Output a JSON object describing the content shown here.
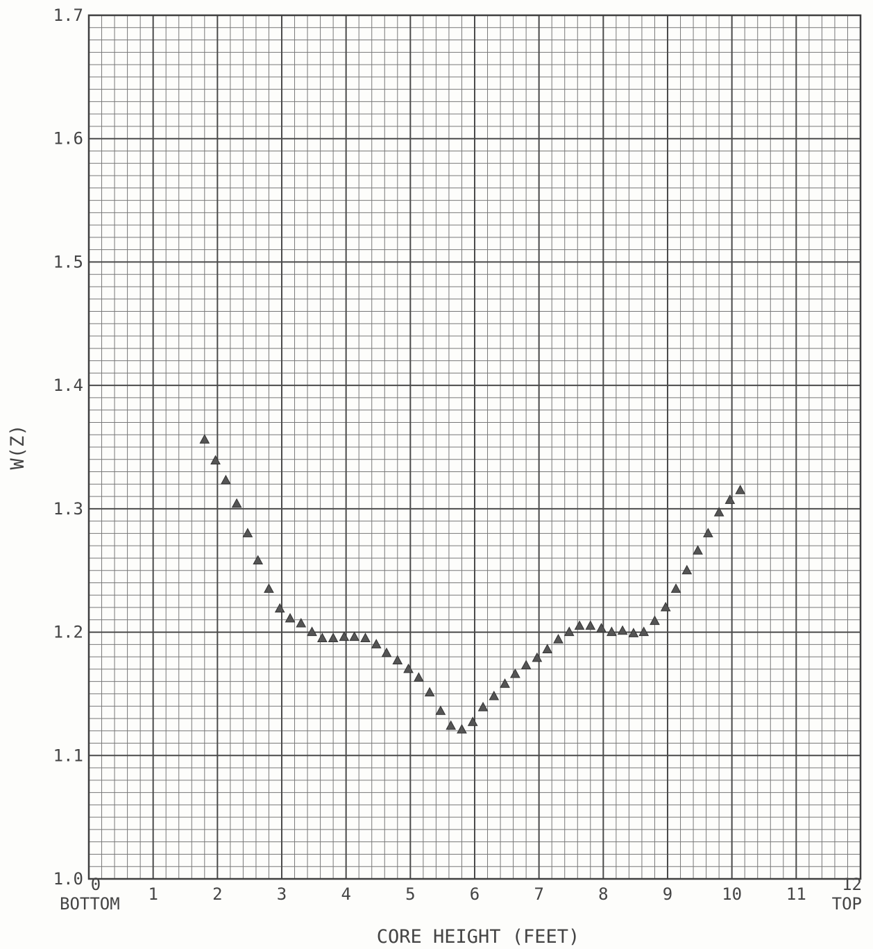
{
  "chart_data": {
    "type": "scatter",
    "xlabel": "CORE HEIGHT (FEET)",
    "ylabel": "W(Z)",
    "x_end_labels": {
      "left": "BOTTOM",
      "right": "TOP"
    },
    "xlim": [
      0,
      12
    ],
    "ylim": [
      1.0,
      1.7
    ],
    "x_ticks": [
      "0",
      "1",
      "2",
      "3",
      "4",
      "5",
      "6",
      "7",
      "8",
      "9",
      "10",
      "11",
      "12"
    ],
    "y_ticks": [
      "1.0",
      "1.1",
      "1.2",
      "1.3",
      "1.4",
      "1.5",
      "1.6",
      "1.7"
    ],
    "grid": true,
    "marker": "triangle",
    "colors": {
      "grid_major": "#4a4a4a",
      "grid_minor": "#777777",
      "marker": "#555555"
    },
    "series": [
      {
        "points": [
          [
            1.8,
            1.356
          ],
          [
            1.97,
            1.339
          ],
          [
            2.13,
            1.323
          ],
          [
            2.3,
            1.304
          ],
          [
            2.47,
            1.28
          ],
          [
            2.63,
            1.258
          ],
          [
            2.8,
            1.235
          ],
          [
            2.97,
            1.219
          ],
          [
            3.13,
            1.211
          ],
          [
            3.3,
            1.207
          ],
          [
            3.47,
            1.2
          ],
          [
            3.63,
            1.195
          ],
          [
            3.8,
            1.195
          ],
          [
            3.97,
            1.196
          ],
          [
            4.13,
            1.196
          ],
          [
            4.3,
            1.195
          ],
          [
            4.47,
            1.19
          ],
          [
            4.63,
            1.183
          ],
          [
            4.8,
            1.177
          ],
          [
            4.97,
            1.17
          ],
          [
            5.13,
            1.163
          ],
          [
            5.3,
            1.151
          ],
          [
            5.47,
            1.136
          ],
          [
            5.63,
            1.124
          ],
          [
            5.8,
            1.121
          ],
          [
            5.97,
            1.127
          ],
          [
            6.13,
            1.139
          ],
          [
            6.3,
            1.148
          ],
          [
            6.47,
            1.158
          ],
          [
            6.63,
            1.166
          ],
          [
            6.8,
            1.173
          ],
          [
            6.97,
            1.179
          ],
          [
            7.13,
            1.186
          ],
          [
            7.3,
            1.194
          ],
          [
            7.47,
            1.2
          ],
          [
            7.63,
            1.205
          ],
          [
            7.8,
            1.205
          ],
          [
            7.97,
            1.203
          ],
          [
            8.13,
            1.2
          ],
          [
            8.3,
            1.201
          ],
          [
            8.47,
            1.199
          ],
          [
            8.63,
            1.2
          ],
          [
            8.8,
            1.209
          ],
          [
            8.97,
            1.22
          ],
          [
            9.13,
            1.235
          ],
          [
            9.3,
            1.25
          ],
          [
            9.47,
            1.266
          ],
          [
            9.63,
            1.28
          ],
          [
            9.8,
            1.297
          ],
          [
            9.97,
            1.307
          ],
          [
            10.13,
            1.315
          ]
        ]
      }
    ]
  }
}
